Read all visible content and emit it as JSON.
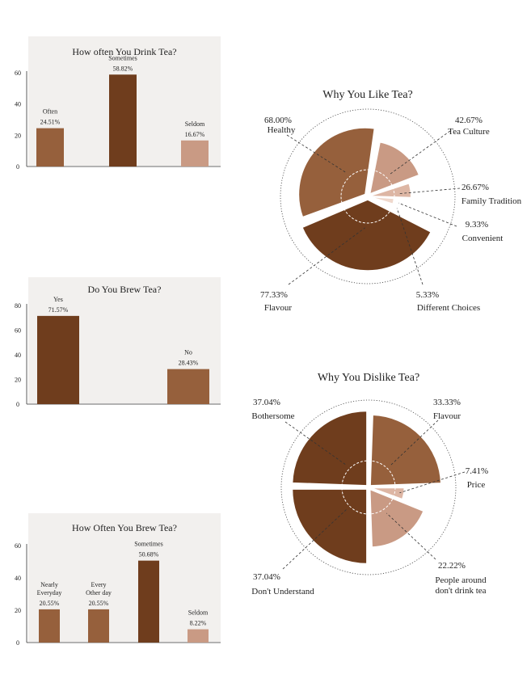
{
  "colors": {
    "dark": "#6f3d1d",
    "mid": "#96603c",
    "light": "#c99a84",
    "pale": "#ddb6a4",
    "palest": "#efd8cc",
    "panel": "#f2f0ee"
  },
  "chart_data": [
    {
      "type": "bar",
      "title": "How often You Drink Tea?",
      "categories": [
        "Often",
        "Sometimes",
        "Seldom"
      ],
      "label_lines": [
        [
          "Often"
        ],
        [
          "Sometimes"
        ],
        [
          "Seldom"
        ]
      ],
      "values": [
        24.51,
        58.82,
        16.67
      ],
      "value_labels": [
        "24.51%",
        "58.82%",
        "16.67%"
      ],
      "bar_colors": [
        "mid",
        "dark",
        "light"
      ],
      "yticks": [
        "0",
        "20",
        "40",
        "60"
      ],
      "ylim": [
        0,
        60
      ]
    },
    {
      "type": "bar",
      "title": "Do You Brew Tea?",
      "categories": [
        "Yes",
        "No"
      ],
      "label_lines": [
        [
          "Yes"
        ],
        [
          "No"
        ]
      ],
      "values": [
        71.57,
        28.43
      ],
      "value_labels": [
        "71.57%",
        "28.43%"
      ],
      "bar_colors": [
        "dark",
        "mid"
      ],
      "yticks": [
        "0",
        "20",
        "40",
        "60",
        "80"
      ],
      "ylim": [
        0,
        80
      ]
    },
    {
      "type": "bar",
      "title": "How Often You Brew Tea?",
      "categories": [
        "Nearly Everyday",
        "Every Other day",
        "Sometimes",
        "Seldom"
      ],
      "label_lines": [
        [
          "Nearly",
          "Everyday"
        ],
        [
          "Every",
          "Other day"
        ],
        [
          "Sometimes"
        ],
        [
          "Seldom"
        ]
      ],
      "values": [
        20.55,
        20.55,
        50.68,
        8.22
      ],
      "value_labels": [
        "20.55%",
        "20.55%",
        "50.68%",
        "8.22%"
      ],
      "bar_colors": [
        "mid",
        "mid",
        "dark",
        "light"
      ],
      "yticks": [
        "0",
        "20",
        "40",
        "60"
      ],
      "ylim": [
        0,
        60
      ]
    },
    {
      "type": "pie",
      "title": "Why You Like Tea?",
      "categories": [
        "Healthy",
        "Tea Culture",
        "Family Tradition",
        "Convenient",
        "Different Choices",
        "Flavour"
      ],
      "values": [
        68.0,
        42.67,
        26.67,
        9.33,
        5.33,
        77.33
      ],
      "value_labels": [
        "68.00%",
        "42.67%",
        "26.67%",
        "9.33%",
        "5.33%",
        "77.33%"
      ],
      "label_lines": [
        [
          "Healthy"
        ],
        [
          "Tea Culture"
        ],
        [
          "Family Tradition"
        ],
        [
          "Convenient"
        ],
        [
          "Different Choices"
        ],
        [
          "Flavour"
        ]
      ],
      "slice_colors": [
        "mid",
        "light",
        "pale",
        "palest",
        "palest",
        "dark"
      ],
      "rmax": 100
    },
    {
      "type": "pie",
      "title": "Why You Dislike Tea?",
      "categories": [
        "Flavour",
        "Price",
        "People around don't drink tea",
        "Don't Understand",
        "Bothersome"
      ],
      "values": [
        33.33,
        7.41,
        22.22,
        37.04,
        37.04
      ],
      "value_labels": [
        "33.33%",
        "7.41%",
        "22.22%",
        "37.04%",
        "37.04%"
      ],
      "label_lines": [
        [
          "Flavour"
        ],
        [
          "Price"
        ],
        [
          "People around",
          "don't drink tea"
        ],
        [
          "Don't Understand"
        ],
        [
          "Bothersome"
        ]
      ],
      "slice_colors": [
        "mid",
        "pale",
        "light",
        "dark",
        "dark"
      ],
      "rmax": 40
    }
  ]
}
